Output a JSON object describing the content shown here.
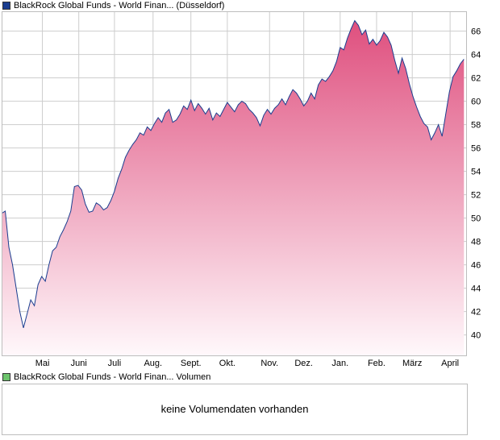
{
  "price_legend": {
    "label": "BlackRock Global Funds - World Finan... (Düsseldorf)",
    "color": "#1a3d8f"
  },
  "volume_legend": {
    "label": "BlackRock Global Funds - World Finan... Volumen",
    "color": "#6cc46c"
  },
  "volume_panel": {
    "message": "keine Volumendaten vorhanden"
  },
  "chart_data": {
    "type": "area",
    "series": [
      {
        "points": [
          [
            0,
            50.4
          ],
          [
            0.5,
            50.6
          ],
          [
            1,
            47.5
          ],
          [
            1.5,
            46.0
          ],
          [
            2,
            44.0
          ],
          [
            2.5,
            42.0
          ],
          [
            3,
            40.6
          ],
          [
            3.5,
            41.8
          ],
          [
            4,
            43.0
          ],
          [
            4.5,
            42.5
          ],
          [
            5,
            44.3
          ],
          [
            5.5,
            45.0
          ],
          [
            6,
            44.6
          ],
          [
            6.5,
            46.0
          ],
          [
            7,
            47.2
          ],
          [
            7.5,
            47.5
          ],
          [
            8,
            48.4
          ],
          [
            8.5,
            49.0
          ],
          [
            9,
            49.7
          ],
          [
            9.5,
            50.6
          ],
          [
            10,
            52.7
          ],
          [
            10.5,
            52.8
          ],
          [
            11,
            52.4
          ],
          [
            11.5,
            51.2
          ],
          [
            12,
            50.5
          ],
          [
            12.5,
            50.6
          ],
          [
            13,
            51.3
          ],
          [
            13.5,
            51.1
          ],
          [
            14,
            50.7
          ],
          [
            14.5,
            50.9
          ],
          [
            15,
            51.5
          ],
          [
            15.5,
            52.3
          ],
          [
            16,
            53.4
          ],
          [
            16.5,
            54.2
          ],
          [
            17,
            55.2
          ],
          [
            17.5,
            55.8
          ],
          [
            18,
            56.3
          ],
          [
            18.5,
            56.7
          ],
          [
            19,
            57.3
          ],
          [
            19.5,
            57.1
          ],
          [
            20,
            57.8
          ],
          [
            20.5,
            57.5
          ],
          [
            21,
            58.1
          ],
          [
            21.5,
            58.6
          ],
          [
            22,
            58.2
          ],
          [
            22.5,
            59.0
          ],
          [
            23,
            59.3
          ],
          [
            23.5,
            58.2
          ],
          [
            24,
            58.4
          ],
          [
            24.5,
            58.9
          ],
          [
            25,
            59.6
          ],
          [
            25.5,
            59.3
          ],
          [
            26,
            60.1
          ],
          [
            26.5,
            59.2
          ],
          [
            27,
            59.8
          ],
          [
            27.5,
            59.4
          ],
          [
            28,
            58.9
          ],
          [
            28.5,
            59.4
          ],
          [
            29,
            58.4
          ],
          [
            29.5,
            59.0
          ],
          [
            30,
            58.7
          ],
          [
            30.5,
            59.3
          ],
          [
            31,
            59.9
          ],
          [
            31.5,
            59.5
          ],
          [
            32,
            59.1
          ],
          [
            32.5,
            59.7
          ],
          [
            33,
            60.0
          ],
          [
            33.5,
            59.8
          ],
          [
            34,
            59.3
          ],
          [
            34.5,
            59.0
          ],
          [
            35,
            58.6
          ],
          [
            35.5,
            57.9
          ],
          [
            36,
            58.8
          ],
          [
            36.5,
            59.3
          ],
          [
            37,
            58.9
          ],
          [
            37.5,
            59.4
          ],
          [
            38,
            59.7
          ],
          [
            38.5,
            60.2
          ],
          [
            39,
            59.7
          ],
          [
            39.5,
            60.4
          ],
          [
            40,
            61.0
          ],
          [
            40.5,
            60.7
          ],
          [
            41,
            60.2
          ],
          [
            41.5,
            59.6
          ],
          [
            42,
            60.0
          ],
          [
            42.5,
            60.7
          ],
          [
            43,
            60.2
          ],
          [
            43.5,
            61.4
          ],
          [
            44,
            61.9
          ],
          [
            44.5,
            61.7
          ],
          [
            45,
            62.1
          ],
          [
            45.5,
            62.6
          ],
          [
            46,
            63.4
          ],
          [
            46.5,
            64.6
          ],
          [
            47,
            64.4
          ],
          [
            47.5,
            65.4
          ],
          [
            48,
            66.2
          ],
          [
            48.5,
            66.9
          ],
          [
            49,
            66.5
          ],
          [
            49.5,
            65.7
          ],
          [
            50,
            66.1
          ],
          [
            50.5,
            64.9
          ],
          [
            51,
            65.3
          ],
          [
            51.5,
            64.8
          ],
          [
            52,
            65.2
          ],
          [
            52.5,
            65.9
          ],
          [
            53,
            65.5
          ],
          [
            53.5,
            64.8
          ],
          [
            54,
            63.5
          ],
          [
            54.5,
            62.4
          ],
          [
            55,
            63.7
          ],
          [
            55.5,
            62.8
          ],
          [
            56,
            61.5
          ],
          [
            56.5,
            60.4
          ],
          [
            57,
            59.5
          ],
          [
            57.5,
            58.7
          ],
          [
            58,
            58.1
          ],
          [
            58.5,
            57.8
          ],
          [
            59,
            56.7
          ],
          [
            59.5,
            57.3
          ],
          [
            60,
            58.0
          ],
          [
            60.5,
            57.0
          ],
          [
            61,
            58.9
          ],
          [
            61.5,
            60.8
          ],
          [
            62,
            62.1
          ],
          [
            62.5,
            62.6
          ],
          [
            63,
            63.2
          ],
          [
            63.5,
            63.6
          ]
        ]
      }
    ],
    "x_ticks": [
      {
        "label": "Mai",
        "x": 5.6
      },
      {
        "label": "Juni",
        "x": 10.6
      },
      {
        "label": "Juli",
        "x": 15.5
      },
      {
        "label": "Aug.",
        "x": 20.8
      },
      {
        "label": "Sept.",
        "x": 26.0
      },
      {
        "label": "Okt.",
        "x": 31.0
      },
      {
        "label": "Nov.",
        "x": 36.8
      },
      {
        "label": "Dez.",
        "x": 41.5
      },
      {
        "label": "Jan.",
        "x": 46.5
      },
      {
        "label": "Feb.",
        "x": 51.5
      },
      {
        "label": "März",
        "x": 56.4
      },
      {
        "label": "April",
        "x": 61.6
      }
    ],
    "y_ticks": [
      40,
      42,
      44,
      46,
      48,
      50,
      52,
      54,
      56,
      58,
      60,
      62,
      64,
      66
    ],
    "xlim": [
      0,
      63.8
    ],
    "ylim": [
      38.25,
      67.7
    ],
    "grid": true,
    "colors": {
      "line": "#1a3d8f",
      "fill_top": "#df4f7e",
      "fill_bottom": "#fff8fb",
      "grid": "#cdcdcd",
      "frame": "#bdbdbd"
    }
  }
}
